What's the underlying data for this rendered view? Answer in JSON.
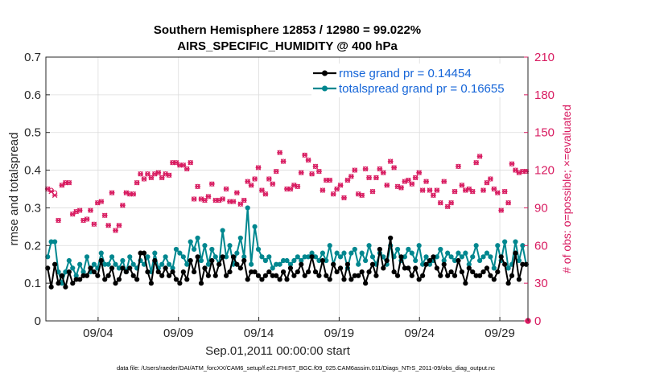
{
  "chart_data": {
    "type": "line",
    "title": "Southern Hemisphere 12853 / 12980 = 99.022%",
    "subtitle": "AIRS_SPECIFIC_HUMIDITY @ 400 hPa",
    "xlabel": "Sep.01,2011 00:00:00 start",
    "ylabel": "rmse and totalspread",
    "ylabel_right": "# of obs: o=possible; ×=evaluated",
    "xlim": [
      0,
      30
    ],
    "ylim": [
      0,
      0.7
    ],
    "ylim_right": [
      0,
      210
    ],
    "x_ticks": [
      {
        "x": 3.25,
        "label": "09/04"
      },
      {
        "x": 8.25,
        "label": "09/09"
      },
      {
        "x": 13.25,
        "label": "09/14"
      },
      {
        "x": 18.25,
        "label": "09/19"
      },
      {
        "x": 23.25,
        "label": "09/24"
      },
      {
        "x": 28.25,
        "label": "09/29"
      }
    ],
    "y_ticks": [
      "0",
      "0.1",
      "0.2",
      "0.3",
      "0.4",
      "0.5",
      "0.6",
      "0.7"
    ],
    "y_ticks_right": [
      "0",
      "30",
      "60",
      "90",
      "120",
      "150",
      "180",
      "210"
    ],
    "legend": [
      {
        "label": "rmse grand pr = 0.14454",
        "color": "#000000"
      },
      {
        "label": "totalspread grand pr = 0.16655",
        "color": "#00878f"
      }
    ],
    "series": [
      {
        "name": "rmse",
        "color": "#000000",
        "values": [
          0.14,
          0.09,
          0.15,
          0.1,
          0.12,
          0.09,
          0.13,
          0.1,
          0.11,
          0.11,
          0.12,
          0.12,
          0.14,
          0.13,
          0.12,
          0.16,
          0.11,
          0.12,
          0.14,
          0.1,
          0.11,
          0.14,
          0.13,
          0.14,
          0.12,
          0.11,
          0.18,
          0.18,
          0.13,
          0.1,
          0.16,
          0.13,
          0.12,
          0.14,
          0.12,
          0.13,
          0.11,
          0.1,
          0.13,
          0.11,
          0.16,
          0.13,
          0.17,
          0.1,
          0.14,
          0.12,
          0.16,
          0.12,
          0.15,
          0.17,
          0.12,
          0.13,
          0.17,
          0.15,
          0.14,
          0.16,
          0.11,
          0.13,
          0.13,
          0.12,
          0.11,
          0.12,
          0.13,
          0.12,
          0.12,
          0.11,
          0.13,
          0.11,
          0.14,
          0.12,
          0.13,
          0.15,
          0.12,
          0.13,
          0.17,
          0.13,
          0.12,
          0.16,
          0.12,
          0.11,
          0.15,
          0.13,
          0.14,
          0.11,
          0.15,
          0.11,
          0.12,
          0.12,
          0.13,
          0.1,
          0.13,
          0.15,
          0.12,
          0.19,
          0.14,
          0.16,
          0.22,
          0.13,
          0.12,
          0.17,
          0.14,
          0.14,
          0.12,
          0.14,
          0.11,
          0.12,
          0.15,
          0.16,
          0.17,
          0.14,
          0.12,
          0.15,
          0.12,
          0.13,
          0.12,
          0.16,
          0.13,
          0.1,
          0.14,
          0.13,
          0.12,
          0.12,
          0.13,
          0.14,
          0.12,
          0.11,
          0.13,
          0.17,
          0.15,
          0.1,
          0.12,
          0.18,
          0.11,
          0.15,
          0.15
        ]
      },
      {
        "name": "totalspread",
        "color": "#00878f",
        "values": [
          0.17,
          0.21,
          0.21,
          0.13,
          0.1,
          0.13,
          0.16,
          0.14,
          0.12,
          0.15,
          0.13,
          0.17,
          0.13,
          0.15,
          0.14,
          0.18,
          0.15,
          0.15,
          0.17,
          0.15,
          0.14,
          0.16,
          0.13,
          0.17,
          0.15,
          0.14,
          0.16,
          0.15,
          0.17,
          0.13,
          0.18,
          0.14,
          0.15,
          0.17,
          0.15,
          0.14,
          0.19,
          0.18,
          0.17,
          0.15,
          0.21,
          0.19,
          0.22,
          0.16,
          0.2,
          0.15,
          0.19,
          0.17,
          0.15,
          0.24,
          0.17,
          0.2,
          0.15,
          0.18,
          0.22,
          0.17,
          0.3,
          0.15,
          0.25,
          0.19,
          0.17,
          0.16,
          0.17,
          0.14,
          0.15,
          0.15,
          0.16,
          0.16,
          0.15,
          0.16,
          0.17,
          0.16,
          0.17,
          0.17,
          0.18,
          0.17,
          0.16,
          0.18,
          0.16,
          0.2,
          0.15,
          0.18,
          0.17,
          0.18,
          0.14,
          0.18,
          0.19,
          0.15,
          0.18,
          0.16,
          0.2,
          0.17,
          0.15,
          0.18,
          0.17,
          0.15,
          0.2,
          0.17,
          0.19,
          0.16,
          0.17,
          0.19,
          0.18,
          0.16,
          0.2,
          0.15,
          0.17,
          0.15,
          0.16,
          0.17,
          0.19,
          0.16,
          0.18,
          0.17,
          0.16,
          0.18,
          0.17,
          0.18,
          0.15,
          0.17,
          0.2,
          0.16,
          0.17,
          0.18,
          0.17,
          0.14,
          0.2,
          0.16,
          0.21,
          0.14,
          0.15,
          0.21,
          0.16,
          0.2,
          0.15
        ]
      },
      {
        "name": "obs_possible",
        "values": [
          105,
          104,
          102,
          80,
          108,
          110,
          110,
          85,
          87,
          88,
          80,
          81,
          88,
          77,
          94,
          95,
          84,
          76,
          102,
          72,
          76,
          92,
          102,
          101,
          101,
          110,
          117,
          113,
          117,
          114,
          117,
          118,
          114,
          117,
          116,
          126,
          126,
          124,
          124,
          121,
          126,
          97,
          107,
          97,
          96,
          99,
          109,
          96,
          96,
          97,
          105,
          95,
          95,
          102,
          93,
          96,
          111,
          108,
          113,
          122,
          104,
          101,
          113,
          109,
          119,
          134,
          127,
          105,
          105,
          108,
          107,
          118,
          132,
          128,
          117,
          123,
          119,
          104,
          112,
          112,
          101,
          105,
          108,
          98,
          112,
          115,
          120,
          101,
          100,
          121,
          114,
          103,
          114,
          121,
          118,
          108,
          127,
          122,
          107,
          106,
          111,
          112,
          109,
          114,
          118,
          104,
          111,
          104,
          100,
          104,
          94,
          111,
          91,
          94,
          103,
          123,
          108,
          104,
          105,
          103,
          126,
          131,
          104,
          110,
          113,
          105,
          102,
          88,
          103,
          94,
          125,
          120,
          118,
          119,
          119
        ]
      },
      {
        "name": "obs_evaluated",
        "values": [
          105,
          103,
          100,
          80,
          108,
          110,
          110,
          85,
          87,
          88,
          80,
          81,
          88,
          77,
          94,
          95,
          84,
          76,
          102,
          72,
          76,
          92,
          102,
          101,
          101,
          110,
          117,
          113,
          117,
          114,
          117,
          118,
          114,
          117,
          116,
          126,
          126,
          124,
          124,
          121,
          126,
          97,
          107,
          97,
          96,
          99,
          109,
          96,
          96,
          97,
          105,
          95,
          95,
          102,
          93,
          96,
          111,
          108,
          113,
          122,
          104,
          101,
          113,
          109,
          119,
          134,
          127,
          105,
          105,
          108,
          107,
          118,
          132,
          128,
          117,
          123,
          119,
          104,
          112,
          112,
          101,
          105,
          108,
          98,
          112,
          115,
          120,
          101,
          100,
          121,
          114,
          103,
          114,
          121,
          118,
          108,
          127,
          122,
          107,
          106,
          111,
          112,
          109,
          114,
          118,
          104,
          111,
          104,
          100,
          104,
          94,
          111,
          91,
          94,
          103,
          123,
          108,
          104,
          105,
          103,
          126,
          131,
          104,
          110,
          113,
          105,
          102,
          88,
          103,
          94,
          125,
          120,
          118,
          119,
          119
        ]
      }
    ],
    "extra_markers": [
      {
        "x": 30,
        "y_right": 0,
        "label": "0 obs marker at end"
      }
    ],
    "footer": "data file: /Users/raeder/DAI/ATM_forcXX/CAM6_setup/f.e21.FHIST_BGC.f09_025.CAM6assim.011/Diags_NTrS_2011-09/obs_diag_output.nc"
  },
  "colors": {
    "rmse": "#000000",
    "spread": "#00878f",
    "obs": "#d81b60",
    "legend_text": "#1565d8"
  }
}
